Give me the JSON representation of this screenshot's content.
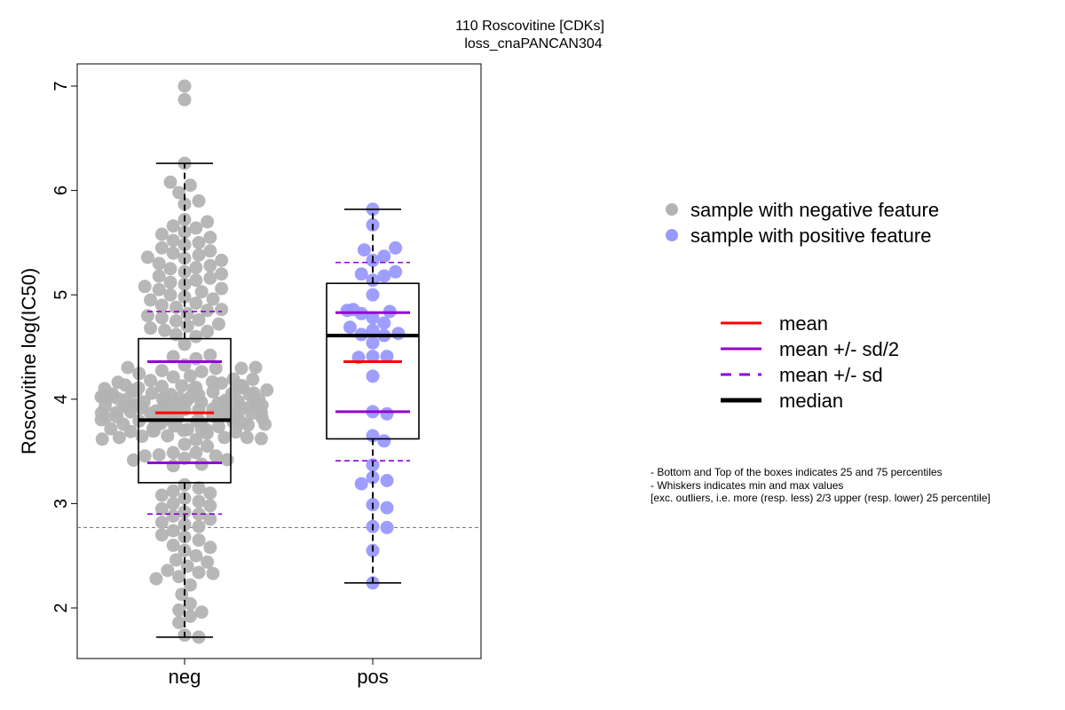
{
  "chart_data": {
    "type": "box-beeswarm",
    "title": "110 Roscovitine [CDKs]",
    "subtitle": "loss_cnaPANCAN304",
    "ylabel": "Roscovitine log(IC50)",
    "ylim": [
      1.55,
      7.2
    ],
    "yticks": [
      2,
      3,
      4,
      5,
      6,
      7
    ],
    "reference_line": 2.77,
    "groups": [
      {
        "name": "neg",
        "color": "#b3b3b3",
        "box": {
          "q1": 3.2,
          "median": 3.8,
          "q3": 4.58,
          "whisker_low": 1.72,
          "whisker_high": 6.26
        },
        "mean": 3.87,
        "mean_minus_half_sd": 3.39,
        "mean_plus_half_sd": 4.36,
        "mean_minus_sd": 2.9,
        "mean_plus_sd": 4.84,
        "points_upper": [
          7.0,
          6.87,
          6.26,
          6.08,
          6.05,
          5.98,
          5.9,
          5.87,
          5.72,
          5.7,
          5.66,
          5.64,
          5.6,
          5.58,
          5.55,
          5.52,
          5.5,
          5.48,
          5.45,
          5.42,
          5.4,
          5.38,
          5.36,
          5.35,
          5.33,
          5.3,
          5.28,
          5.26,
          5.25,
          5.22,
          5.2,
          5.18,
          5.16,
          5.14,
          5.12,
          5.1,
          5.08,
          5.06,
          5.05,
          5.03,
          5.0,
          4.98,
          4.96,
          4.95,
          4.92,
          4.9,
          4.88,
          4.86,
          4.85,
          4.82,
          4.8,
          4.78,
          4.76,
          4.75,
          4.72,
          4.7,
          4.68,
          4.66,
          4.65,
          4.62,
          4.6
        ],
        "points_lower": [
          1.72,
          1.74,
          1.86,
          1.92,
          1.96,
          1.98,
          2.04,
          2.13,
          2.22,
          2.28,
          2.3,
          2.33,
          2.34,
          2.36,
          2.4,
          2.44,
          2.46,
          2.5,
          2.55,
          2.58,
          2.6,
          2.65,
          2.68,
          2.7,
          2.74,
          2.78,
          2.8,
          2.82,
          2.85,
          2.88,
          2.9,
          2.92,
          2.95,
          2.98,
          3.0,
          3.02,
          3.05,
          3.08,
          3.1,
          3.12,
          3.15,
          3.18
        ]
      },
      {
        "name": "pos",
        "color": "#9999ff",
        "box": {
          "q1": 3.62,
          "median": 4.61,
          "q3": 5.11,
          "whisker_low": 2.24,
          "whisker_high": 5.82
        },
        "mean": 4.36,
        "mean_minus_half_sd": 3.88,
        "mean_plus_half_sd": 4.83,
        "mean_minus_sd": 3.41,
        "mean_plus_sd": 5.31,
        "points": [
          5.82,
          5.67,
          5.45,
          5.43,
          5.37,
          5.33,
          5.22,
          5.2,
          5.18,
          5.14,
          5.0,
          4.86,
          4.85,
          4.84,
          4.82,
          4.78,
          4.73,
          4.69,
          4.66,
          4.63,
          4.62,
          4.61,
          4.54,
          4.41,
          4.41,
          4.4,
          4.22,
          3.88,
          3.86,
          3.65,
          3.6,
          3.37,
          3.25,
          3.22,
          3.19,
          2.99,
          2.96,
          2.77,
          2.78,
          2.55,
          2.24
        ]
      }
    ],
    "legend_points": [
      {
        "label": "sample with negative feature",
        "color": "#b3b3b3"
      },
      {
        "label": "sample with positive feature",
        "color": "#9999ff"
      }
    ],
    "legend_lines": [
      {
        "label": "mean",
        "color": "#ff0000",
        "dash": "solid"
      },
      {
        "label": "mean +/- sd/2",
        "color": "#9400d3",
        "dash": "solid"
      },
      {
        "label": "mean +/- sd",
        "color": "#9400d3",
        "dash": "dashed"
      },
      {
        "label": "median",
        "color": "#000000",
        "dash": "solid"
      }
    ],
    "notes": [
      "- Bottom and Top of the boxes indicates 25 and 75 percentiles",
      "- Whiskers indicates min and max values",
      "[exc. outliers, i.e. more (resp. less) 2/3 upper (resp. lower) 25 percentile]"
    ]
  }
}
